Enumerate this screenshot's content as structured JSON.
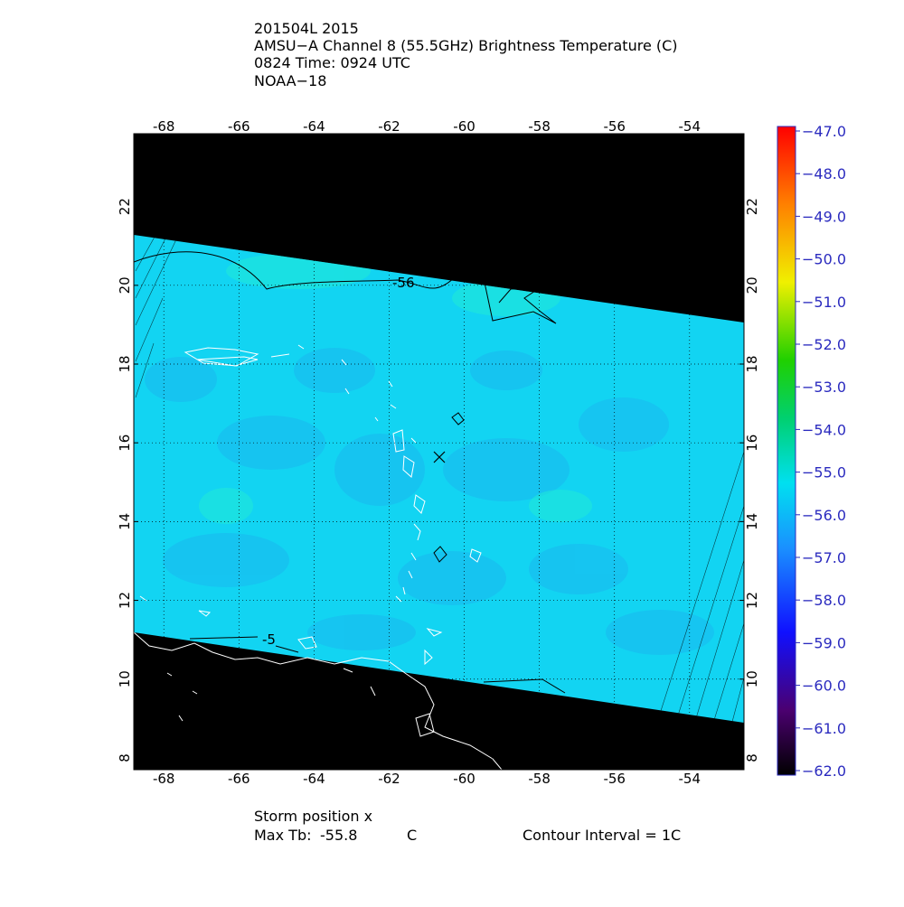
{
  "title_lines": [
    "201504L 2015",
    "AMSU−A Channel 8 (55.5GHz) Brightness Temperature (C)",
    "0824 Time: 0924 UTC",
    "NOAA−18"
  ],
  "map": {
    "lonlim": [
      -68.8,
      -52.55
    ],
    "latlim": [
      7.7,
      23.85
    ],
    "lon_ticks": [
      -68,
      -66,
      -64,
      -62,
      -60,
      -58,
      -56,
      -54
    ],
    "lat_ticks": [
      8,
      10,
      12,
      14,
      16,
      18,
      20,
      22
    ],
    "grid": true
  },
  "contour_labels": [
    "-56",
    "-5"
  ],
  "colorbar": {
    "lim": [
      -62,
      -47
    ],
    "ticks": [
      {
        "value": -47,
        "label": "−47.0"
      },
      {
        "value": -48,
        "label": "−48.0"
      },
      {
        "value": -49,
        "label": "−49.0"
      },
      {
        "value": -50,
        "label": "−50.0"
      },
      {
        "value": -51,
        "label": "−51.0"
      },
      {
        "value": -52,
        "label": "−52.0"
      },
      {
        "value": -53,
        "label": "−53.0"
      },
      {
        "value": -54,
        "label": "−54.0"
      },
      {
        "value": -55,
        "label": "−55.0"
      },
      {
        "value": -56,
        "label": "−56.0"
      },
      {
        "value": -57,
        "label": "−57.0"
      },
      {
        "value": -58,
        "label": "−58.0"
      },
      {
        "value": -59,
        "label": "−59.0"
      },
      {
        "value": -60,
        "label": "−60.0"
      },
      {
        "value": -61,
        "label": "−61.0"
      },
      {
        "value": -62,
        "label": "−62.0"
      }
    ]
  },
  "footer": {
    "storm_position": "Storm position x",
    "max_tb_label": "Max Tb:",
    "max_tb": -55.8,
    "unit": "C",
    "contour_interval": "Contour Interval = 1C"
  }
}
